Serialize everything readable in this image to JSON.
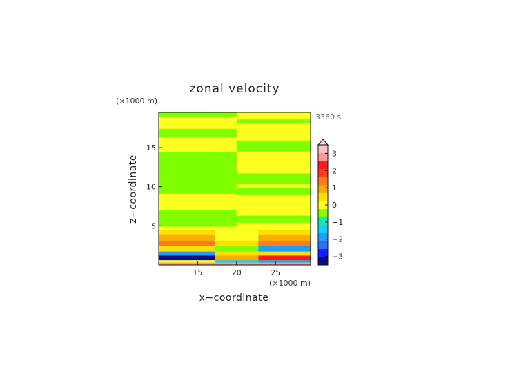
{
  "chart_data": {
    "type": "heatmap",
    "title": "zonal velocity",
    "xlabel": "x−coordinate",
    "ylabel": "z−coordinate",
    "x_unit": "(×1000 m)",
    "y_unit": "(×1000 m)",
    "time_label": "3360 s",
    "xlim": [
      10,
      29.5
    ],
    "ylim": [
      0,
      19.5
    ],
    "x_ticks": [
      15,
      20,
      25
    ],
    "x_tick_labels": [
      "15",
      "20",
      "25"
    ],
    "y_ticks": [
      5,
      10,
      15
    ],
    "y_tick_labels": [
      "5",
      "10",
      "15"
    ],
    "colorbar": {
      "levels": [
        -3.5,
        -3.0,
        -2.5,
        -2.0,
        -1.5,
        -1.0,
        -0.5,
        0.0,
        0.5,
        1.0,
        1.5,
        2.0,
        2.5,
        3.0,
        3.5
      ],
      "colors": [
        "#0d0d8a",
        "#1a1aff",
        "#2e6ef2",
        "#1e9fff",
        "#12cfff",
        "#19e6b8",
        "#7fff00",
        "#ffff20",
        "#ffde00",
        "#ffaa00",
        "#ff7a1a",
        "#ff3b1a",
        "#ff1a1a",
        "#ff9999",
        "#ffbfbf"
      ],
      "ticks": [
        3,
        2,
        1,
        0,
        -1,
        -2,
        -3
      ],
      "tick_labels": [
        "3",
        "2",
        "1",
        "0",
        "−1",
        "−2",
        "−3"
      ],
      "extend": "max"
    },
    "upper_bands": {
      "yellow_left_x": [
        10,
        20
      ],
      "yellow_right_x": [
        20,
        29.5
      ],
      "yellow_left": [
        [
          18.9,
          17.4
        ],
        [
          16.4,
          14.4
        ],
        [
          9.1,
          7.0
        ],
        [
          4.9,
          4.4
        ]
      ],
      "yellow_right": [
        [
          19.5,
          18.6
        ],
        [
          18.1,
          15.9
        ],
        [
          14.5,
          11.7
        ],
        [
          10.3,
          9.8
        ],
        [
          8.9,
          6.3
        ],
        [
          5.4,
          4.4
        ]
      ]
    },
    "bottom_layers": [
      {
        "y": [
          3.8,
          4.4
        ],
        "left": 0.5,
        "center": 0.2,
        "right": 0.5
      },
      {
        "y": [
          3.1,
          3.8
        ],
        "left": 1.2,
        "center": 0.4,
        "right": 1.2
      },
      {
        "y": [
          2.4,
          3.1
        ],
        "left": 1.6,
        "center": 0.6,
        "right": 1.6
      },
      {
        "y": [
          1.7,
          2.4
        ],
        "left": 0.8,
        "center": -0.4,
        "right": -1.8
      },
      {
        "y": [
          1.2,
          1.7
        ],
        "left": -1.6,
        "center": 0.5,
        "right": 0.8
      },
      {
        "y": [
          0.6,
          1.2
        ],
        "left": -3.3,
        "center": 1.2,
        "right": 2.8
      },
      {
        "y": [
          0.3,
          0.6
        ],
        "left": 0.3,
        "center": -1.2,
        "right": -2.0
      },
      {
        "y": [
          0.0,
          0.3
        ],
        "left": 3.1,
        "center": 3.2,
        "right": 3.1
      }
    ]
  }
}
